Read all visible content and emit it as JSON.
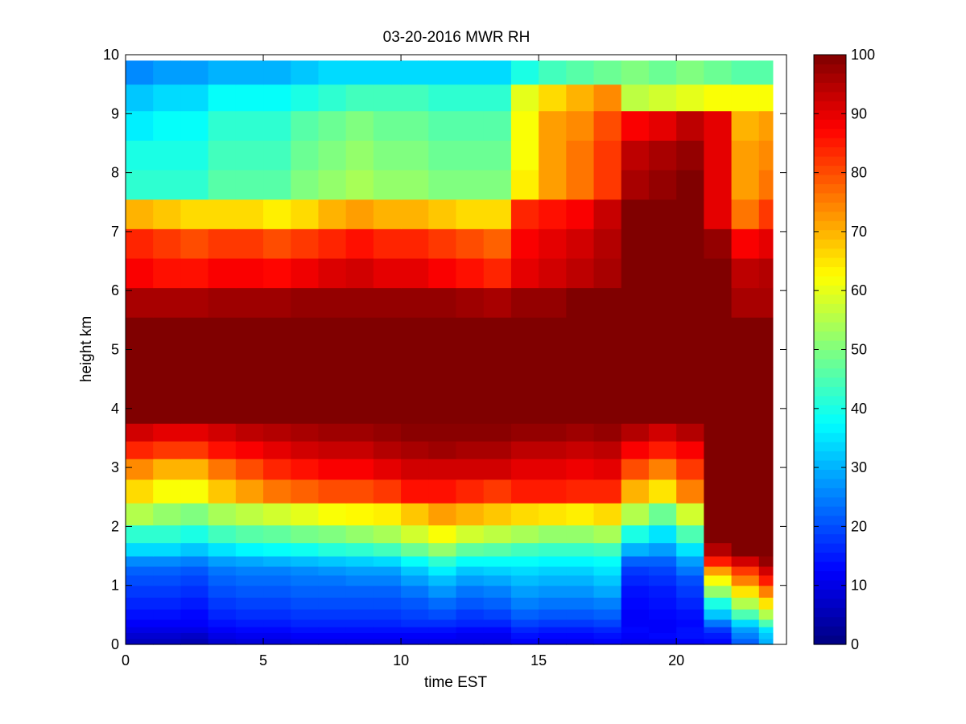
{
  "chart_data": {
    "type": "heatmap",
    "title": "03-20-2016 MWR RH",
    "xlabel": "time EST",
    "ylabel": "height km",
    "xlim": [
      0,
      24
    ],
    "ylim": [
      0,
      10
    ],
    "x_ticks": [
      "0",
      "5",
      "10",
      "15",
      "20"
    ],
    "y_ticks": [
      "0",
      "1",
      "2",
      "3",
      "4",
      "5",
      "6",
      "7",
      "8",
      "9",
      "10"
    ],
    "colorbar": {
      "colormap": "jet",
      "range": [
        0,
        100
      ],
      "ticks": [
        "0",
        "10",
        "20",
        "30",
        "40",
        "50",
        "60",
        "70",
        "80",
        "90",
        "100"
      ]
    },
    "x_hours": [
      0,
      1,
      2,
      3,
      4,
      5,
      6,
      7,
      8,
      9,
      10,
      11,
      12,
      13,
      14,
      15,
      16,
      17,
      18,
      19,
      20,
      21,
      22,
      23
    ],
    "heights_km": [
      0.05,
      0.15,
      0.25,
      0.35,
      0.5,
      0.7,
      0.9,
      1.1,
      1.25,
      1.4,
      1.6,
      1.85,
      2.2,
      2.6,
      3.0,
      3.3,
      3.6,
      3.9,
      4.2,
      4.5,
      4.9,
      5.3,
      5.8,
      6.3,
      6.8,
      7.3,
      7.8,
      8.3,
      8.8,
      9.3,
      9.7
    ],
    "rh_percent": [
      [
        6,
        6,
        5,
        8,
        9,
        9,
        10,
        10,
        10,
        10,
        10,
        10,
        10,
        10,
        12,
        11,
        11,
        12,
        11,
        11,
        12,
        13,
        22,
        30
      ],
      [
        8,
        8,
        7,
        10,
        11,
        11,
        12,
        12,
        12,
        12,
        12,
        12,
        11,
        11,
        14,
        13,
        13,
        14,
        12,
        13,
        14,
        15,
        25,
        32
      ],
      [
        10,
        10,
        10,
        12,
        13,
        13,
        14,
        14,
        14,
        14,
        14,
        14,
        13,
        13,
        16,
        15,
        15,
        16,
        13,
        12,
        14,
        18,
        28,
        35
      ],
      [
        12,
        12,
        12,
        14,
        15,
        15,
        16,
        16,
        16,
        16,
        17,
        17,
        16,
        16,
        19,
        18,
        18,
        19,
        12,
        12,
        13,
        24,
        34,
        45
      ],
      [
        14,
        14,
        13,
        16,
        17,
        17,
        18,
        18,
        18,
        18,
        19,
        20,
        18,
        19,
        22,
        21,
        21,
        22,
        12,
        13,
        14,
        32,
        45,
        55
      ],
      [
        16,
        16,
        15,
        18,
        19,
        19,
        20,
        20,
        20,
        20,
        21,
        23,
        21,
        22,
        25,
        24,
        24,
        25,
        13,
        14,
        16,
        40,
        55,
        65
      ],
      [
        18,
        18,
        17,
        20,
        21,
        21,
        22,
        22,
        22,
        22,
        24,
        27,
        24,
        25,
        28,
        27,
        27,
        29,
        14,
        15,
        18,
        52,
        65,
        75
      ],
      [
        20,
        20,
        19,
        22,
        23,
        23,
        24,
        24,
        25,
        25,
        28,
        31,
        28,
        29,
        31,
        30,
        30,
        32,
        16,
        17,
        20,
        62,
        75,
        85
      ],
      [
        22,
        22,
        21,
        24,
        25,
        25,
        26,
        27,
        28,
        28,
        32,
        36,
        32,
        33,
        34,
        33,
        33,
        35,
        18,
        19,
        24,
        72,
        82,
        92
      ],
      [
        26,
        26,
        25,
        28,
        29,
        30,
        31,
        32,
        33,
        34,
        38,
        42,
        38,
        38,
        38,
        37,
        37,
        38,
        22,
        22,
        28,
        85,
        92,
        98
      ],
      [
        34,
        34,
        32,
        35,
        37,
        38,
        39,
        41,
        42,
        44,
        48,
        52,
        47,
        46,
        44,
        43,
        43,
        44,
        30,
        28,
        35,
        95,
        100,
        100
      ],
      [
        42,
        42,
        40,
        44,
        46,
        47,
        49,
        50,
        52,
        54,
        58,
        62,
        58,
        56,
        54,
        52,
        52,
        54,
        40,
        35,
        45,
        100,
        100,
        100
      ],
      [
        55,
        52,
        50,
        54,
        56,
        58,
        60,
        62,
        63,
        64,
        68,
        72,
        70,
        68,
        66,
        65,
        64,
        66,
        55,
        48,
        58,
        100,
        100,
        100
      ],
      [
        66,
        62,
        62,
        68,
        72,
        76,
        78,
        80,
        80,
        82,
        86,
        86,
        84,
        82,
        85,
        85,
        84,
        84,
        70,
        65,
        75,
        100,
        100,
        100
      ],
      [
        74,
        70,
        70,
        76,
        80,
        84,
        86,
        88,
        88,
        90,
        92,
        92,
        92,
        92,
        90,
        90,
        89,
        90,
        80,
        75,
        82,
        100,
        100,
        100
      ],
      [
        84,
        82,
        82,
        86,
        88,
        90,
        92,
        93,
        93,
        95,
        96,
        97,
        96,
        96,
        94,
        94,
        93,
        94,
        88,
        85,
        88,
        100,
        100,
        100
      ],
      [
        92,
        90,
        90,
        92,
        94,
        95,
        96,
        97,
        97,
        98,
        99,
        99,
        99,
        99,
        98,
        98,
        97,
        98,
        95,
        92,
        95,
        100,
        100,
        100
      ],
      [
        100,
        100,
        100,
        100,
        100,
        100,
        100,
        100,
        100,
        100,
        100,
        100,
        100,
        100,
        100,
        100,
        100,
        100,
        100,
        100,
        100,
        100,
        100,
        100
      ],
      [
        100,
        100,
        100,
        100,
        100,
        100,
        100,
        100,
        100,
        100,
        100,
        100,
        100,
        100,
        100,
        100,
        100,
        100,
        100,
        100,
        100,
        100,
        100,
        100
      ],
      [
        100,
        100,
        100,
        100,
        100,
        100,
        100,
        100,
        100,
        100,
        100,
        100,
        100,
        100,
        100,
        100,
        100,
        100,
        100,
        100,
        100,
        100,
        100,
        100
      ],
      [
        100,
        100,
        100,
        100,
        100,
        100,
        100,
        100,
        100,
        100,
        100,
        100,
        100,
        100,
        100,
        100,
        100,
        100,
        100,
        100,
        100,
        100,
        100,
        100
      ],
      [
        100,
        100,
        100,
        100,
        100,
        100,
        100,
        100,
        100,
        100,
        100,
        100,
        100,
        100,
        100,
        100,
        100,
        100,
        100,
        100,
        100,
        100,
        100,
        100
      ],
      [
        96,
        96,
        96,
        97,
        97,
        97,
        98,
        98,
        98,
        98,
        98,
        98,
        97,
        96,
        98,
        98,
        100,
        100,
        100,
        100,
        100,
        100,
        96,
        96
      ],
      [
        88,
        86,
        86,
        88,
        88,
        87,
        89,
        91,
        92,
        90,
        90,
        88,
        86,
        84,
        90,
        92,
        94,
        96,
        100,
        100,
        100,
        100,
        94,
        95
      ],
      [
        84,
        82,
        80,
        82,
        82,
        80,
        82,
        84,
        86,
        84,
        84,
        82,
        80,
        78,
        88,
        90,
        92,
        95,
        100,
        100,
        100,
        98,
        88,
        90
      ],
      [
        70,
        68,
        66,
        66,
        66,
        64,
        66,
        70,
        72,
        70,
        70,
        68,
        66,
        66,
        84,
        86,
        88,
        93,
        100,
        100,
        100,
        90,
        76,
        82
      ],
      [
        42,
        42,
        42,
        46,
        46,
        46,
        50,
        52,
        54,
        52,
        52,
        50,
        50,
        50,
        64,
        72,
        76,
        82,
        96,
        98,
        100,
        90,
        72,
        76
      ],
      [
        40,
        40,
        40,
        44,
        44,
        44,
        48,
        50,
        52,
        50,
        50,
        48,
        48,
        48,
        62,
        72,
        76,
        82,
        94,
        96,
        98,
        90,
        72,
        74
      ],
      [
        36,
        38,
        38,
        42,
        42,
        42,
        46,
        48,
        50,
        48,
        48,
        46,
        46,
        46,
        62,
        72,
        74,
        80,
        88,
        90,
        94,
        90,
        70,
        72
      ],
      [
        32,
        34,
        34,
        38,
        38,
        38,
        40,
        42,
        44,
        44,
        44,
        42,
        42,
        42,
        60,
        66,
        70,
        74,
        56,
        58,
        60,
        62,
        62,
        62
      ],
      [
        26,
        28,
        28,
        30,
        30,
        30,
        32,
        34,
        34,
        34,
        34,
        34,
        34,
        34,
        40,
        44,
        46,
        48,
        50,
        48,
        50,
        48,
        46,
        46
      ]
    ]
  }
}
